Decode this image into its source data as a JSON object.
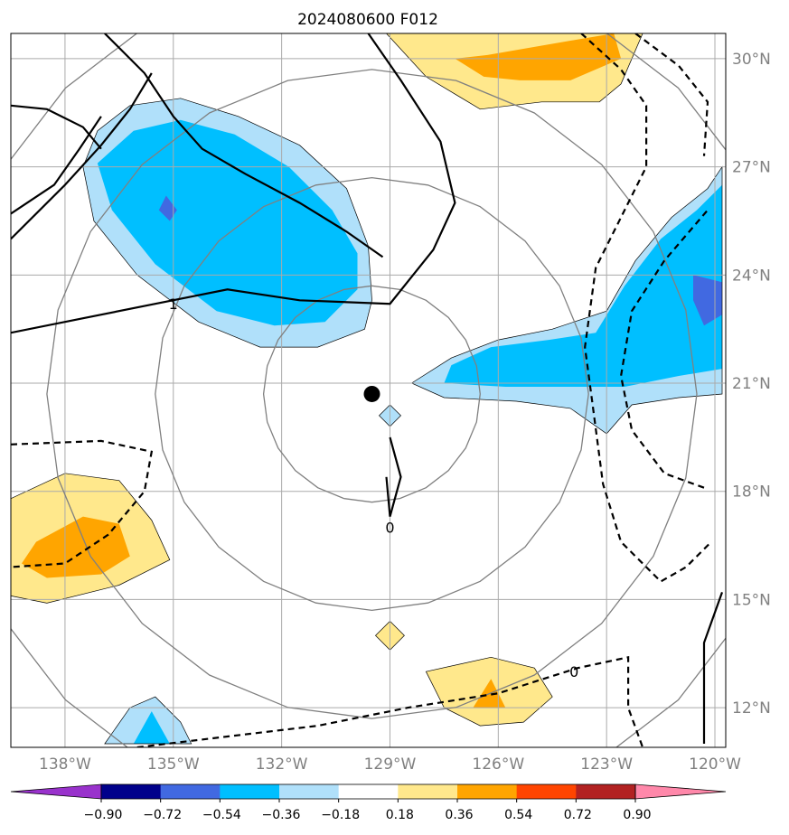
{
  "chart_data": {
    "type": "heatmap",
    "title": "2024080600 F012",
    "projection": "lat-lon map (filled contour field with overlaid contour lines)",
    "lon_ticks": [
      "138°W",
      "135°W",
      "132°W",
      "129°W",
      "126°W",
      "123°W",
      "120°W"
    ],
    "lon_values": [
      -138,
      -135,
      -132,
      -129,
      -126,
      -123,
      -120
    ],
    "lat_ticks": [
      "30°N",
      "27°N",
      "24°N",
      "21°N",
      "18°N",
      "15°N",
      "12°N"
    ],
    "lat_values": [
      30,
      27,
      24,
      21,
      18,
      15,
      12
    ],
    "xlim": [
      -139.5,
      -119.7
    ],
    "ylim": [
      10.9,
      30.7
    ],
    "grid": true,
    "center_marker": {
      "lon": -129.5,
      "lat": 20.7
    },
    "range_rings_deg": [
      3,
      6,
      9,
      12
    ],
    "colorbar": {
      "orientation": "horizontal",
      "extend": "both",
      "levels": [
        -0.9,
        -0.72,
        -0.54,
        -0.36,
        -0.18,
        0.18,
        0.36,
        0.54,
        0.72,
        0.9
      ],
      "tick_labels": [
        "−0.90",
        "−0.72",
        "−0.54",
        "−0.36",
        "−0.18",
        "0.18",
        "0.36",
        "0.54",
        "0.72",
        "0.90"
      ],
      "colors": [
        "#9932CC",
        "#00008B",
        "#4169E1",
        "#00BFFF",
        "#B0E0FA",
        "#FFFFFF",
        "#FFE88C",
        "#FFA500",
        "#FF4500",
        "#B22222",
        "#FF88AA"
      ]
    },
    "filled_regions": [
      {
        "name": "NW negative blob",
        "level": "-0.36 to -0.18",
        "color": "#B0E0FA",
        "polygon": [
          [
            -136.2,
            28.7
          ],
          [
            -134.8,
            28.9
          ],
          [
            -133.2,
            28.4
          ],
          [
            -131.5,
            27.6
          ],
          [
            -130.2,
            26.4
          ],
          [
            -129.6,
            24.8
          ],
          [
            -129.5,
            23.3
          ],
          [
            -129.7,
            22.5
          ],
          [
            -131.0,
            22.0
          ],
          [
            -132.6,
            22.0
          ],
          [
            -134.3,
            22.7
          ],
          [
            -136.0,
            24.0
          ],
          [
            -137.2,
            25.5
          ],
          [
            -137.5,
            27.0
          ],
          [
            -137.1,
            28.0
          ]
        ]
      },
      {
        "name": "NW negative core",
        "level": "-0.54 to -0.36",
        "color": "#00BFFF",
        "polygon": [
          [
            -136.1,
            28.0
          ],
          [
            -134.8,
            28.3
          ],
          [
            -133.3,
            27.9
          ],
          [
            -131.8,
            27.0
          ],
          [
            -130.6,
            25.8
          ],
          [
            -129.9,
            24.6
          ],
          [
            -129.9,
            23.6
          ],
          [
            -130.8,
            22.7
          ],
          [
            -132.2,
            22.6
          ],
          [
            -133.8,
            23.0
          ],
          [
            -135.5,
            24.3
          ],
          [
            -136.7,
            25.8
          ],
          [
            -137.1,
            27.1
          ]
        ]
      },
      {
        "name": "NW deep spot",
        "level": "-0.72 to -0.54",
        "color": "#4169E1",
        "polygon": [
          [
            -135.2,
            26.2
          ],
          [
            -134.9,
            25.8
          ],
          [
            -135.1,
            25.5
          ],
          [
            -135.4,
            25.8
          ]
        ]
      },
      {
        "name": "E negative band",
        "level": "-0.36 to -0.18",
        "color": "#B0E0FA",
        "polygon": [
          [
            -128.4,
            21.0
          ],
          [
            -127.3,
            21.7
          ],
          [
            -126.0,
            22.2
          ],
          [
            -124.5,
            22.5
          ],
          [
            -123.0,
            23.0
          ],
          [
            -122.2,
            24.4
          ],
          [
            -121.2,
            25.6
          ],
          [
            -120.2,
            26.4
          ],
          [
            -119.8,
            27.0
          ],
          [
            -119.8,
            20.7
          ],
          [
            -121.0,
            20.6
          ],
          [
            -122.3,
            20.4
          ],
          [
            -123.0,
            19.6
          ],
          [
            -124.0,
            20.3
          ],
          [
            -125.5,
            20.5
          ],
          [
            -127.5,
            20.6
          ]
        ]
      },
      {
        "name": "E negative core",
        "level": "-0.54 to -0.36",
        "color": "#00BFFF",
        "polygon": [
          [
            -127.3,
            21.5
          ],
          [
            -126.2,
            22.0
          ],
          [
            -124.6,
            22.2
          ],
          [
            -123.3,
            22.4
          ],
          [
            -122.5,
            23.7
          ],
          [
            -121.5,
            25.0
          ],
          [
            -120.5,
            25.8
          ],
          [
            -119.8,
            26.5
          ],
          [
            -119.8,
            21.4
          ],
          [
            -121.0,
            21.2
          ],
          [
            -122.5,
            20.9
          ],
          [
            -124.0,
            20.9
          ],
          [
            -125.8,
            20.9
          ],
          [
            -127.5,
            21.0
          ]
        ]
      },
      {
        "name": "E deep spot",
        "level": "-0.72 to -0.54",
        "color": "#4169E1",
        "polygon": [
          [
            -120.6,
            24.0
          ],
          [
            -119.8,
            23.8
          ],
          [
            -119.8,
            22.9
          ],
          [
            -120.3,
            22.6
          ],
          [
            -120.6,
            23.3
          ]
        ]
      },
      {
        "name": "small negative diamond",
        "level": "-0.36 to -0.18",
        "color": "#B0E0FA",
        "polygon": [
          [
            -129.0,
            20.4
          ],
          [
            -128.7,
            20.1
          ],
          [
            -129.0,
            19.8
          ],
          [
            -129.3,
            20.1
          ]
        ]
      },
      {
        "name": "SW negative blob",
        "level": "-0.36 to -0.18",
        "color": "#B0E0FA",
        "polygon": [
          [
            -136.9,
            11.0
          ],
          [
            -136.2,
            12.0
          ],
          [
            -135.5,
            12.3
          ],
          [
            -134.8,
            11.6
          ],
          [
            -134.5,
            11.0
          ]
        ]
      },
      {
        "name": "SW negative core",
        "level": "-0.54 to -0.36",
        "color": "#00BFFF",
        "polygon": [
          [
            -136.1,
            11.0
          ],
          [
            -135.6,
            11.9
          ],
          [
            -135.1,
            11.0
          ]
        ]
      },
      {
        "name": "N positive blob",
        "level": "0.18 to 0.36",
        "color": "#FFE88C",
        "polygon": [
          [
            -129.1,
            30.7
          ],
          [
            -122.0,
            30.7
          ],
          [
            -122.6,
            29.3
          ],
          [
            -123.2,
            28.8
          ],
          [
            -124.8,
            28.8
          ],
          [
            -126.5,
            28.6
          ],
          [
            -128.0,
            29.5
          ]
        ]
      },
      {
        "name": "N positive core",
        "level": "0.36 to 0.54",
        "color": "#FFA500",
        "polygon": [
          [
            -126.3,
            30.1
          ],
          [
            -124.0,
            30.5
          ],
          [
            -122.8,
            30.7
          ],
          [
            -122.6,
            30.0
          ],
          [
            -124.0,
            29.4
          ],
          [
            -125.4,
            29.4
          ],
          [
            -126.4,
            29.5
          ],
          [
            -127.2,
            30.0
          ]
        ]
      },
      {
        "name": "W positive blob",
        "level": "0.18 to 0.36",
        "color": "#FFE88C",
        "polygon": [
          [
            -139.5,
            17.8
          ],
          [
            -138.0,
            18.5
          ],
          [
            -136.5,
            18.3
          ],
          [
            -135.6,
            17.2
          ],
          [
            -135.1,
            16.1
          ],
          [
            -136.5,
            15.4
          ],
          [
            -138.5,
            14.9
          ],
          [
            -139.5,
            15.1
          ]
        ]
      },
      {
        "name": "W positive core",
        "level": "0.36 to 0.54",
        "color": "#FFA500",
        "polygon": [
          [
            -138.8,
            16.6
          ],
          [
            -137.5,
            17.3
          ],
          [
            -136.5,
            17.1
          ],
          [
            -136.2,
            16.2
          ],
          [
            -137.0,
            15.7
          ],
          [
            -138.5,
            15.6
          ],
          [
            -139.2,
            16.0
          ]
        ]
      },
      {
        "name": "S positive blob",
        "level": "0.18 to 0.36",
        "color": "#FFE88C",
        "polygon": [
          [
            -128.0,
            13.0
          ],
          [
            -126.2,
            13.4
          ],
          [
            -125.0,
            13.1
          ],
          [
            -124.5,
            12.3
          ],
          [
            -125.3,
            11.6
          ],
          [
            -126.5,
            11.5
          ],
          [
            -127.5,
            12.0
          ]
        ]
      },
      {
        "name": "S positive core",
        "level": "0.36 to 0.54",
        "color": "#FFA500",
        "polygon": [
          [
            -126.2,
            12.8
          ],
          [
            -125.8,
            12.0
          ],
          [
            -126.7,
            12.0
          ]
        ]
      },
      {
        "name": "S small positive diamond",
        "level": "0.18 to 0.36",
        "color": "#FFE88C",
        "polygon": [
          [
            -129.0,
            14.4
          ],
          [
            -128.6,
            14.0
          ],
          [
            -129.0,
            13.6
          ],
          [
            -129.4,
            14.0
          ]
        ]
      }
    ],
    "contour_lines": [
      {
        "style": "solid",
        "points": [
          [
            -136.9,
            30.7
          ],
          [
            -135.8,
            29.6
          ],
          [
            -135.0,
            28.4
          ],
          [
            -134.2,
            27.5
          ],
          [
            -133.0,
            26.8
          ],
          [
            -131.5,
            26.0
          ],
          [
            -130.2,
            25.2
          ],
          [
            -129.2,
            24.5
          ]
        ]
      },
      {
        "style": "solid",
        "points": [
          [
            -139.5,
            22.4
          ],
          [
            -137.5,
            22.8
          ],
          [
            -135.5,
            23.2
          ],
          [
            -133.5,
            23.6
          ],
          [
            -131.5,
            23.3
          ],
          [
            -129.0,
            23.2
          ],
          [
            -127.8,
            24.7
          ],
          [
            -127.2,
            26.0
          ],
          [
            -127.6,
            27.7
          ],
          [
            -128.7,
            29.4
          ],
          [
            -129.6,
            30.7
          ]
        ]
      },
      {
        "style": "solid",
        "points": [
          [
            -139.5,
            25.0
          ],
          [
            -138.0,
            26.5
          ],
          [
            -137.0,
            27.6
          ],
          [
            -136.2,
            28.6
          ],
          [
            -135.6,
            29.6
          ]
        ]
      },
      {
        "style": "solid",
        "points": [
          [
            -139.5,
            28.7
          ],
          [
            -138.5,
            28.6
          ],
          [
            -137.5,
            28.1
          ],
          [
            -137.0,
            27.5
          ]
        ]
      },
      {
        "style": "solid",
        "points": [
          [
            -139.5,
            25.7
          ],
          [
            -138.3,
            26.5
          ],
          [
            -137.6,
            27.5
          ],
          [
            -137.0,
            28.4
          ]
        ]
      },
      {
        "style": "solid",
        "points": [
          [
            -129.0,
            19.5
          ],
          [
            -128.7,
            18.4
          ],
          [
            -129.0,
            17.3
          ],
          [
            -129.1,
            18.4
          ]
        ]
      },
      {
        "style": "solid",
        "points": [
          [
            -120.3,
            11.0
          ],
          [
            -120.3,
            13.8
          ],
          [
            -119.8,
            15.2
          ]
        ]
      },
      {
        "style": "dashed",
        "points": [
          [
            -139.5,
            19.3
          ],
          [
            -137.0,
            19.4
          ],
          [
            -135.6,
            19.1
          ],
          [
            -135.8,
            18.0
          ],
          [
            -136.8,
            16.8
          ],
          [
            -138.0,
            16.0
          ],
          [
            -139.5,
            15.9
          ]
        ]
      },
      {
        "style": "dashed",
        "points": [
          [
            -123.7,
            30.7
          ],
          [
            -122.6,
            29.7
          ],
          [
            -121.9,
            28.7
          ],
          [
            -121.9,
            27.0
          ],
          [
            -122.6,
            25.6
          ],
          [
            -123.3,
            24.2
          ],
          [
            -123.6,
            22.0
          ],
          [
            -123.4,
            20.5
          ],
          [
            -123.1,
            18.2
          ],
          [
            -122.6,
            16.6
          ],
          [
            -121.5,
            15.5
          ],
          [
            -120.8,
            15.9
          ],
          [
            -120.1,
            16.6
          ]
        ]
      },
      {
        "style": "dashed",
        "points": [
          [
            -122.2,
            30.7
          ],
          [
            -121.0,
            29.8
          ],
          [
            -120.2,
            28.8
          ],
          [
            -120.3,
            27.3
          ]
        ]
      },
      {
        "style": "dashed",
        "points": [
          [
            -136.0,
            10.9
          ],
          [
            -133.5,
            11.2
          ],
          [
            -131.0,
            11.5
          ],
          [
            -128.5,
            12.0
          ],
          [
            -126.0,
            12.4
          ],
          [
            -123.8,
            13.1
          ],
          [
            -122.4,
            13.4
          ],
          [
            -122.4,
            12.0
          ],
          [
            -122.0,
            10.9
          ]
        ]
      },
      {
        "style": "dashed",
        "points": [
          [
            -120.3,
            18.1
          ],
          [
            -121.4,
            18.5
          ],
          [
            -122.3,
            19.7
          ],
          [
            -122.6,
            21.2
          ],
          [
            -122.3,
            23.0
          ],
          [
            -121.4,
            24.4
          ],
          [
            -120.2,
            25.8
          ]
        ]
      }
    ],
    "contour_labels": [
      {
        "text": "0",
        "lon": -129.0,
        "lat": 17.0
      },
      {
        "text": "0",
        "lon": -123.9,
        "lat": 13.0
      },
      {
        "text": "1",
        "lon": -135.0,
        "lat": 23.2
      }
    ]
  }
}
